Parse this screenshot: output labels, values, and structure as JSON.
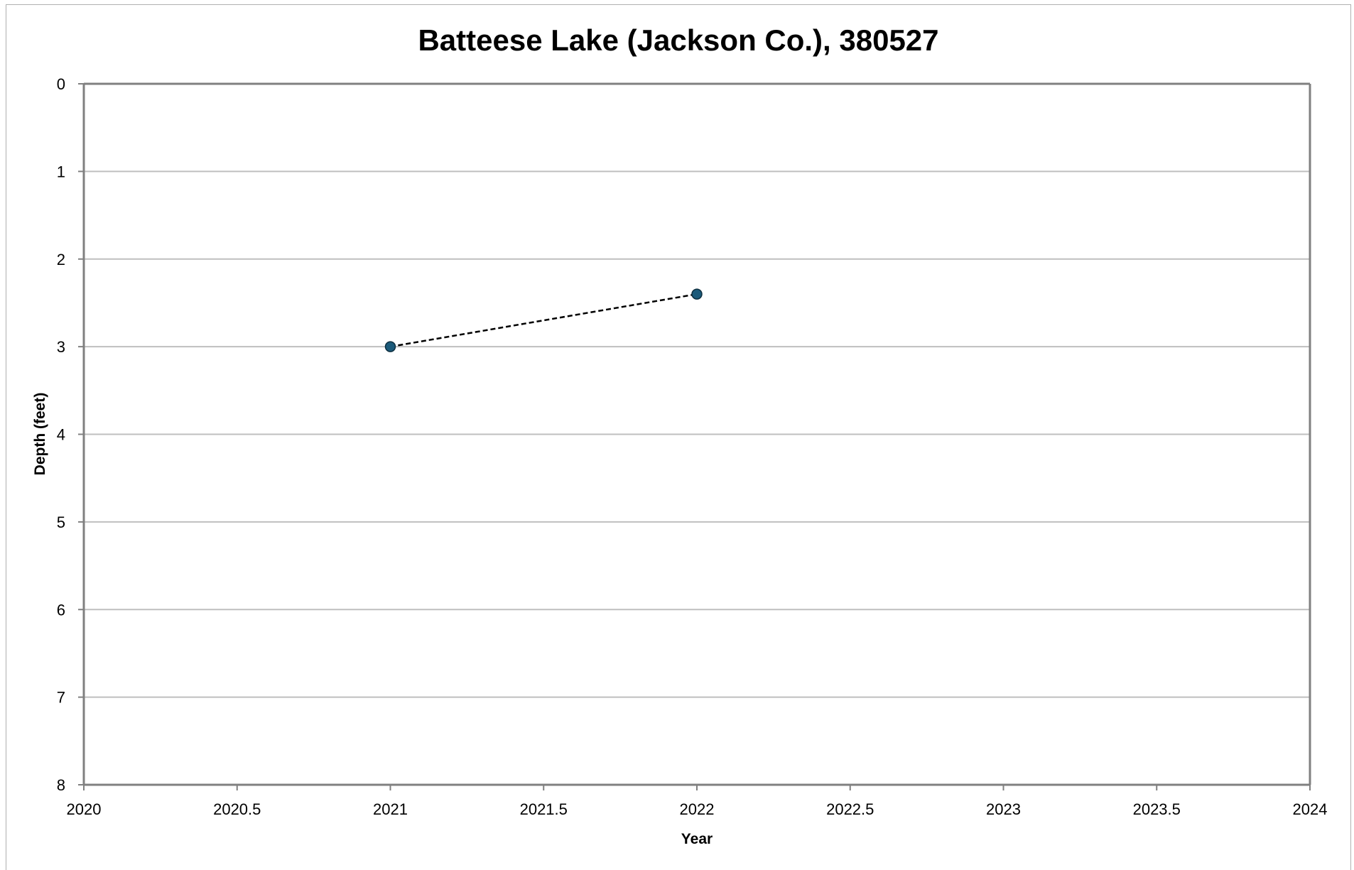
{
  "chart_data": {
    "type": "line",
    "title": "Batteese Lake (Jackson Co.), 380527",
    "xlabel": "Year",
    "ylabel": "Depth (feet)",
    "xlim": [
      2020,
      2024
    ],
    "ylim": [
      0,
      8
    ],
    "y_inverted": true,
    "grid": true,
    "x_ticks": [
      "2020",
      "2020.5",
      "2021",
      "2021.5",
      "2022",
      "2022.5",
      "2023",
      "2023.5",
      "2024"
    ],
    "y_ticks": [
      "0",
      "1",
      "2",
      "3",
      "4",
      "5",
      "6",
      "7",
      "8"
    ],
    "series": [
      {
        "x": [
          2021,
          2022
        ],
        "y": [
          3.0,
          2.4
        ],
        "color": "#1b5a7a",
        "line_color": "#000000",
        "line_style": "dashed"
      }
    ]
  }
}
